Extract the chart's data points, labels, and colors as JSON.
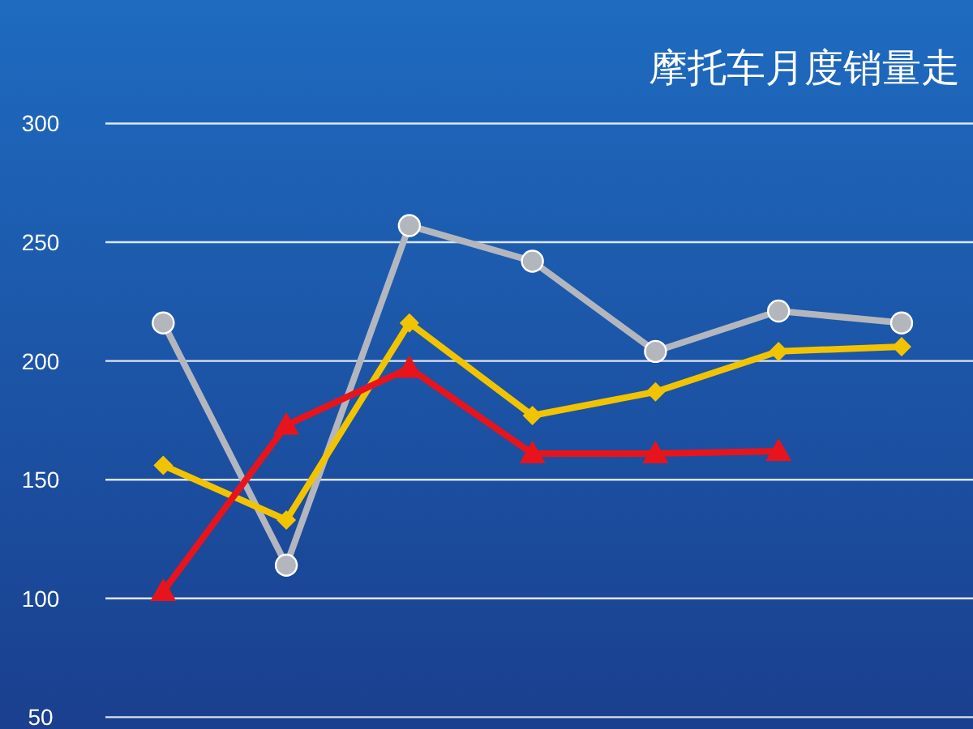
{
  "chart_data": {
    "type": "line",
    "title": "摩托车月度销量走",
    "categories": [
      null,
      null,
      null,
      null,
      null,
      null,
      null
    ],
    "series": [
      {
        "color": "#b4b6be",
        "marker": "circle",
        "values": [
          216,
          114,
          257,
          242,
          204,
          221,
          216
        ]
      },
      {
        "color": "#f2c400",
        "marker": "diamond",
        "values": [
          156,
          133,
          216,
          177,
          187,
          204,
          206
        ]
      },
      {
        "color": "#e8141c",
        "marker": "triangle",
        "values": [
          103,
          173,
          197,
          161,
          161,
          162,
          null
        ]
      }
    ],
    "ylim": [
      45,
      352
    ],
    "yticks": [
      50,
      100,
      150,
      200,
      250,
      300
    ],
    "grid": "y"
  }
}
